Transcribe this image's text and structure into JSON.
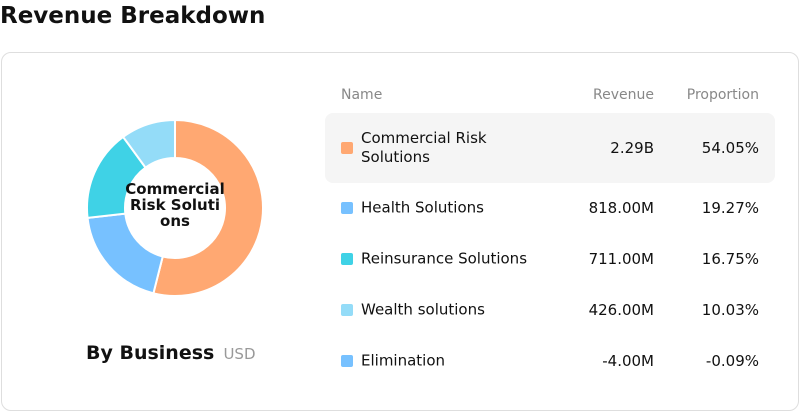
{
  "page": {
    "title": "Revenue Breakdown"
  },
  "chart_panel": {
    "center_label": "Commercial Risk Solutions",
    "caption": "By Business",
    "unit": "USD"
  },
  "table": {
    "headers": {
      "name": "Name",
      "revenue": "Revenue",
      "proportion": "Proportion"
    },
    "selected_index": 0
  },
  "colors": {
    "commercial_risk": "#FFA872",
    "health": "#77C1FF",
    "reinsurance": "#3FD2E6",
    "wealth": "#94DCF8",
    "elimination": "#77C1FF"
  },
  "chart_data": {
    "type": "pie",
    "title": "",
    "unit": "USD",
    "categories": [
      "Commercial Risk Solutions",
      "Health Solutions",
      "Reinsurance Solutions",
      "Wealth solutions",
      "Elimination"
    ],
    "revenue_labels": [
      "2.29B",
      "818.00M",
      "711.00M",
      "426.00M",
      "-4.00M"
    ],
    "values": [
      2290000000,
      818000000,
      711000000,
      426000000,
      -4000000
    ],
    "proportion_labels": [
      "54.05%",
      "19.27%",
      "16.75%",
      "10.03%",
      "-0.09%"
    ],
    "proportions": [
      54.05,
      19.27,
      16.75,
      10.03,
      -0.09
    ],
    "colors": [
      "#FFA872",
      "#77C1FF",
      "#3FD2E6",
      "#94DCF8",
      "#77C1FF"
    ]
  }
}
